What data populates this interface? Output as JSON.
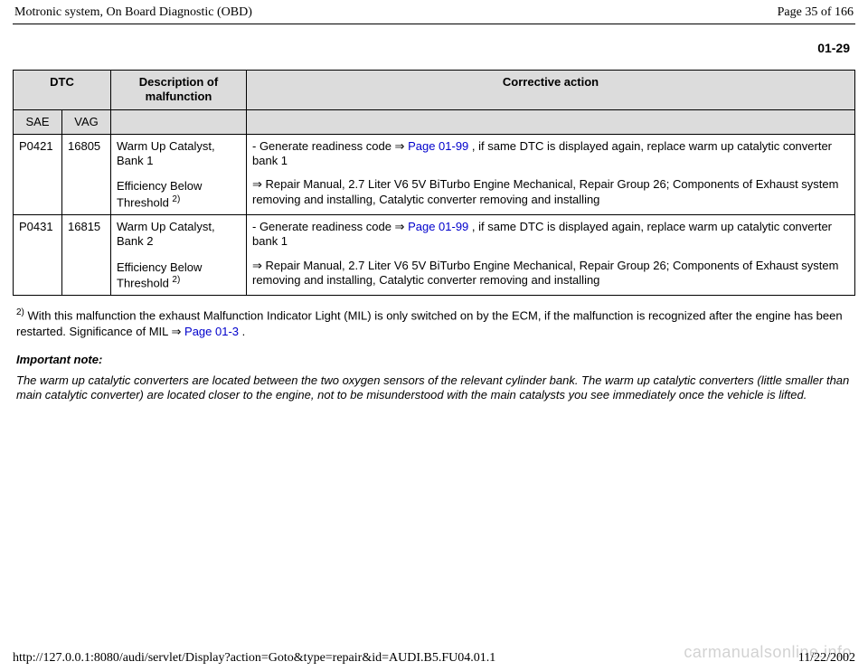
{
  "header": {
    "title": "Motronic system, On Board Diagnostic (OBD)",
    "page_of": "Page 35 of 166"
  },
  "section_number": "01-29",
  "table": {
    "head": {
      "dtc": "DTC",
      "desc": "Description of malfunction",
      "action": "Corrective action",
      "sae": "SAE",
      "vag": "VAG"
    },
    "rows": [
      {
        "sae": "P0421",
        "vag": "16805",
        "desc_line1": "Warm Up Catalyst, Bank 1",
        "desc_line2_a": "Efficiency Below Threshold ",
        "desc_line2_sup": "2)",
        "action1_pre": "- Generate readiness code  ",
        "action1_arrow": "⇒",
        "action1_link": " Page 01-99 ",
        "action1_post": ", if same DTC is displayed again, replace warm up catalytic converter bank 1",
        "action2_arrow": "⇒ ",
        "action2_text": " Repair Manual, 2.7 Liter V6 5V BiTurbo Engine Mechanical, Repair Group 26; Components of Exhaust system removing and installing, Catalytic converter removing and installing"
      },
      {
        "sae": "P0431",
        "vag": "16815",
        "desc_line1": "Warm Up Catalyst, Bank 2",
        "desc_line2_a": "Efficiency Below Threshold ",
        "desc_line2_sup": "2)",
        "action1_pre": "- Generate readiness code  ",
        "action1_arrow": "⇒",
        "action1_link": " Page 01-99 ",
        "action1_post": ", if same DTC is displayed again, replace warm up catalytic converter bank 1",
        "action2_arrow": "⇒ ",
        "action2_text": " Repair Manual, 2.7 Liter V6 5V BiTurbo Engine Mechanical, Repair Group 26; Components of Exhaust system removing and installing, Catalytic converter removing and installing"
      }
    ]
  },
  "footnote": {
    "sup": "2)",
    "text_a": " With this malfunction the exhaust Malfunction Indicator Light (MIL) is only switched on by the ECM, if the malfunction is recognized after the engine has been restarted. Significance of MIL  ",
    "arrow": "⇒",
    "link": " Page 01-3 ",
    "text_b": "."
  },
  "note": {
    "heading": "Important note:",
    "body": "The warm up catalytic converters are located between the two oxygen sensors of the relevant cylinder bank. The warm up catalytic converters (little smaller than main catalytic converter) are located closer to the engine, not to be misunderstood with the main catalysts you see immediately once the vehicle is lifted."
  },
  "footer": {
    "url": "http://127.0.0.1:8080/audi/servlet/Display?action=Goto&type=repair&id=AUDI.B5.FU04.01.1",
    "date": "11/22/2002"
  },
  "watermark": "carmanualsonline.info"
}
